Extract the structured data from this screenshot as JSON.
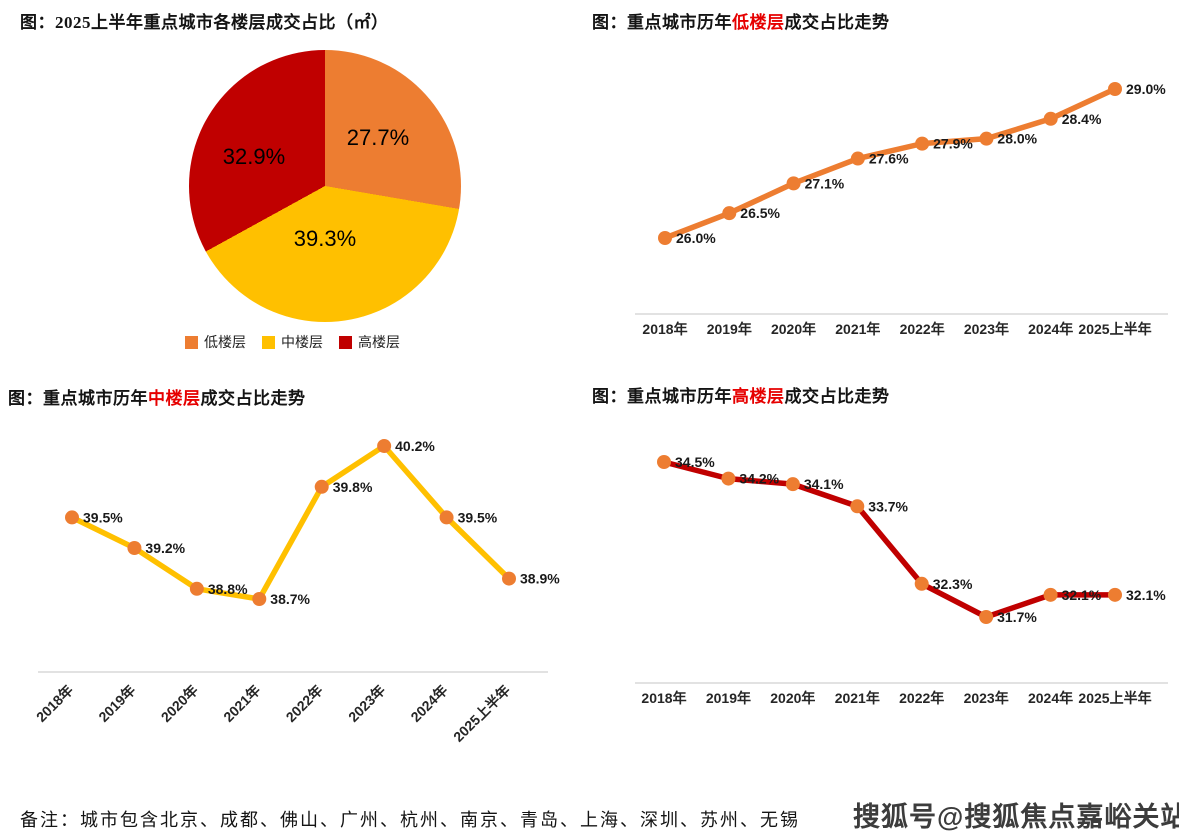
{
  "page": {
    "background": "#ffffff"
  },
  "colors": {
    "orange": "#ED7D31",
    "yellow": "#FFC000",
    "red": "#C00000",
    "axis_line": "#D9D9D9",
    "title_highlight": "#E60000",
    "watermark_text": "#3C3C3C"
  },
  "footer": {
    "note": "备注：城市包含北京、成都、佛山、广州、杭州、南京、青岛、上海、深圳、苏州、无锡",
    "watermark": "搜狐号@搜狐焦点嘉峪关站"
  },
  "chart_data": [
    {
      "type": "pie",
      "title": "图：2025上半年重点城市各楼层成交占比（㎡）",
      "legend_position": "bottom",
      "start_angle": "top",
      "direction": "clockwise",
      "slices": [
        {
          "label": "低楼层",
          "value": 27.7,
          "display": "27.7%",
          "color": "#ED7D31"
        },
        {
          "label": "中楼层",
          "value": 39.3,
          "display": "39.3%",
          "color": "#FFC000"
        },
        {
          "label": "高楼层",
          "value": 32.9,
          "display": "32.9%",
          "color": "#C00000"
        }
      ]
    },
    {
      "type": "line",
      "title_prefix": "图：重点城市历年",
      "title_highlight": "低楼层",
      "title_suffix": "成交占比走势",
      "categories": [
        "2018年",
        "2019年",
        "2020年",
        "2021年",
        "2022年",
        "2023年",
        "2024年",
        "2025上半年"
      ],
      "values": [
        26.0,
        26.5,
        27.1,
        27.6,
        27.9,
        28.0,
        28.4,
        29.0
      ],
      "labels": [
        "26.0%",
        "26.5%",
        "27.1%",
        "27.6%",
        "27.9%",
        "28.0%",
        "28.4%",
        "29.0%"
      ],
      "line_color": "#ED7D31",
      "marker_color": "#ED7D31",
      "ylim": [
        26.0,
        29.0
      ],
      "grid": false,
      "x_label_rotate": 0,
      "legend": "none"
    },
    {
      "type": "line",
      "title_prefix": "图：重点城市历年",
      "title_highlight": "中楼层",
      "title_suffix": "成交占比走势",
      "categories": [
        "2018年",
        "2019年",
        "2020年",
        "2021年",
        "2022年",
        "2023年",
        "2024年",
        "2025上半年"
      ],
      "values": [
        39.5,
        39.2,
        38.8,
        38.7,
        39.8,
        40.2,
        39.5,
        38.9
      ],
      "labels": [
        "39.5%",
        "39.2%",
        "38.8%",
        "38.7%",
        "39.8%",
        "40.2%",
        "39.5%",
        "38.9%"
      ],
      "line_color": "#FFC000",
      "marker_color": "#ED7D31",
      "ylim": [
        38.7,
        40.2
      ],
      "grid": false,
      "x_label_rotate": 45,
      "legend": "none"
    },
    {
      "type": "line",
      "title_prefix": "图：重点城市历年",
      "title_highlight": "高楼层",
      "title_suffix": "成交占比走势",
      "categories": [
        "2018年",
        "2019年",
        "2020年",
        "2021年",
        "2022年",
        "2023年",
        "2024年",
        "2025上半年"
      ],
      "values": [
        34.5,
        34.2,
        34.1,
        33.7,
        32.3,
        31.7,
        32.1,
        32.1
      ],
      "labels": [
        "34.5%",
        "34.2%",
        "34.1%",
        "33.7%",
        "32.3%",
        "31.7%",
        "32.1%",
        "32.1%"
      ],
      "line_color": "#C00000",
      "marker_color": "#ED7D31",
      "ylim": [
        31.7,
        34.5
      ],
      "grid": false,
      "x_label_rotate": 0,
      "legend": "none"
    }
  ]
}
